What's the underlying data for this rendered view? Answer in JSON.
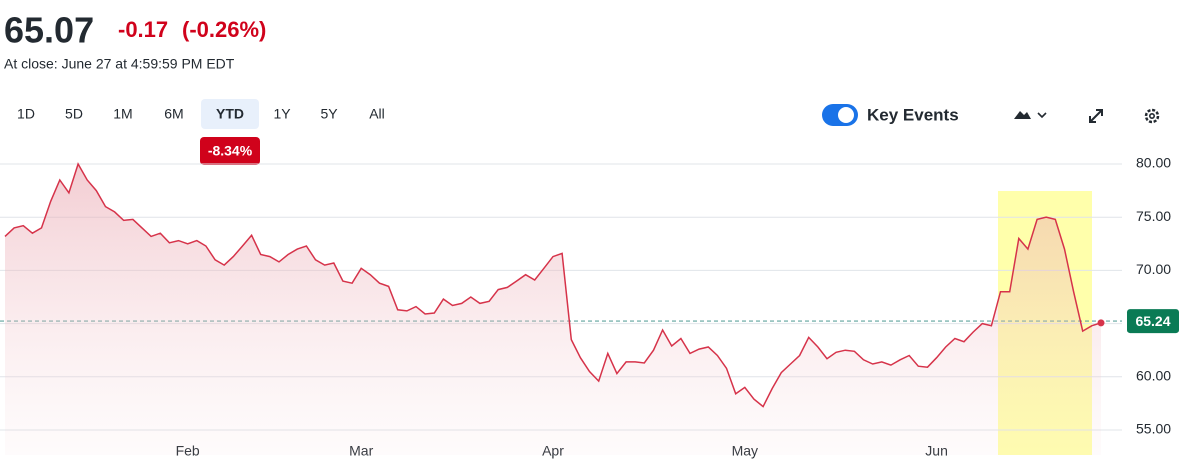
{
  "quote": {
    "price": "65.07",
    "change": "-0.17",
    "change_pct": "(-0.26%)",
    "close_note": "At close: June 27 at 4:59:59 PM EDT"
  },
  "toolbar": {
    "ranges": [
      "1D",
      "5D",
      "1M",
      "6M",
      "YTD",
      "1Y",
      "5Y",
      "All"
    ],
    "range_change": "-8.34%",
    "key_events": "Key Events"
  },
  "chart_data": {
    "type": "line",
    "color": "#d6334a",
    "categories": [
      null,
      null,
      null,
      null,
      null,
      null,
      null,
      null,
      null,
      null,
      null,
      null,
      null,
      null,
      null,
      null,
      null,
      null,
      null,
      null,
      "Feb",
      null,
      null,
      null,
      null,
      null,
      null,
      null,
      null,
      null,
      null,
      null,
      null,
      null,
      null,
      null,
      null,
      null,
      null,
      "Mar",
      null,
      null,
      null,
      null,
      null,
      null,
      null,
      null,
      null,
      null,
      null,
      null,
      null,
      null,
      null,
      null,
      null,
      null,
      null,
      null,
      "Apr",
      null,
      null,
      null,
      null,
      null,
      null,
      null,
      null,
      null,
      null,
      null,
      null,
      null,
      null,
      null,
      null,
      null,
      null,
      null,
      null,
      "May",
      null,
      null,
      null,
      null,
      null,
      null,
      null,
      null,
      null,
      null,
      null,
      null,
      null,
      null,
      null,
      null,
      null,
      null,
      null,
      null,
      "Jun",
      null,
      null,
      null,
      null,
      null,
      null,
      null,
      null,
      null,
      null,
      null,
      null,
      null,
      null,
      null,
      null,
      null,
      null
    ],
    "values": [
      73.2,
      74.0,
      74.2,
      73.5,
      74.0,
      76.5,
      78.5,
      77.3,
      80.0,
      78.5,
      77.5,
      76.0,
      75.5,
      74.7,
      74.8,
      74.0,
      73.2,
      73.5,
      72.6,
      72.8,
      72.5,
      72.8,
      72.3,
      71.0,
      70.5,
      71.3,
      72.3,
      73.3,
      71.5,
      71.3,
      70.8,
      71.5,
      72.0,
      72.3,
      71.0,
      70.5,
      70.7,
      69.0,
      68.8,
      70.2,
      69.6,
      68.8,
      68.5,
      66.3,
      66.2,
      66.6,
      65.9,
      66.0,
      67.3,
      66.7,
      66.9,
      67.5,
      66.9,
      67.1,
      68.2,
      68.4,
      69.0,
      69.6,
      69.1,
      70.2,
      71.3,
      71.6,
      63.5,
      61.8,
      60.5,
      59.6,
      62.2,
      60.3,
      61.4,
      61.4,
      61.3,
      62.5,
      64.4,
      62.9,
      63.6,
      62.2,
      62.6,
      62.8,
      62.0,
      60.8,
      58.4,
      59.0,
      57.9,
      57.2,
      58.9,
      60.4,
      61.2,
      62.0,
      63.7,
      62.8,
      61.7,
      62.3,
      62.5,
      62.4,
      61.6,
      61.2,
      61.4,
      61.1,
      61.6,
      62.0,
      61.0,
      60.9,
      61.8,
      62.8,
      63.6,
      63.3,
      64.2,
      65.0,
      64.8,
      68.0,
      68.0,
      73.0,
      72.0,
      74.8,
      75.0,
      74.8,
      72.0,
      68.0,
      64.3,
      64.8,
      65.07
    ],
    "ylim": [
      52.65,
      81.32
    ],
    "yticks": [
      {
        "value": 55,
        "label": "55.00"
      },
      {
        "value": 60,
        "label": "60.00"
      },
      {
        "value": 65,
        "label": "65.00"
      },
      {
        "value": 70,
        "label": "70.00"
      },
      {
        "value": 75,
        "label": "75.00"
      },
      {
        "value": 80,
        "label": "80.00"
      }
    ],
    "grid": true,
    "previous_close": 65.24
  }
}
